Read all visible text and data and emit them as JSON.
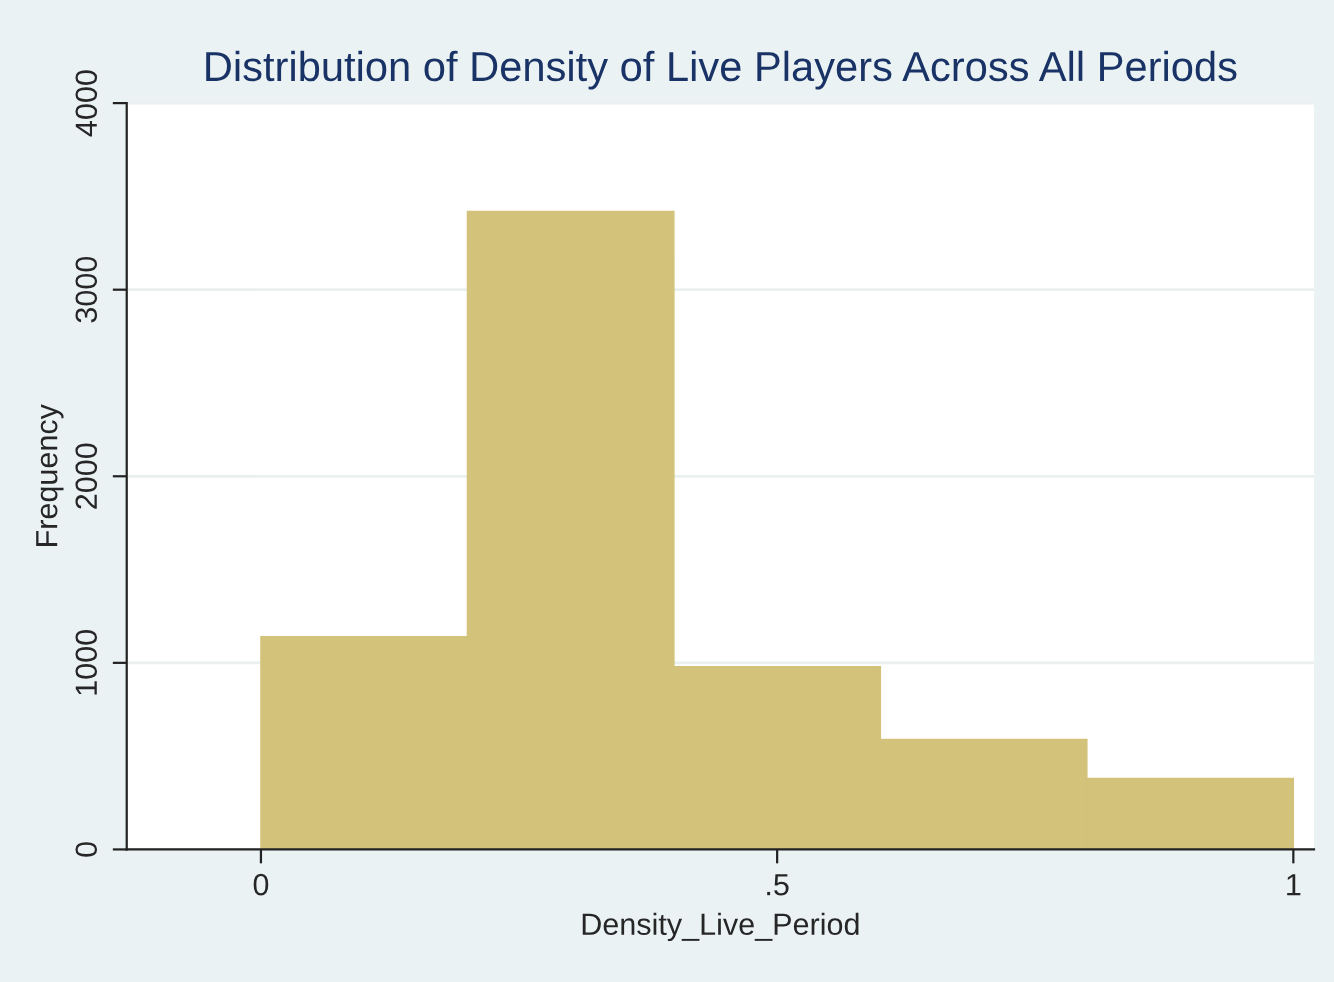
{
  "chart_data": {
    "type": "histogram",
    "title": "Distribution of Density of Live Players Across All Periods",
    "xlabel": "Density_Live_Period",
    "ylabel": "Frequency",
    "bins": [
      0,
      0.2,
      0.4,
      0.6,
      0.8,
      1.0
    ],
    "values": [
      1140,
      3420,
      980,
      590,
      380
    ],
    "color": "#d2c27a",
    "xlim": [
      -0.13,
      1.02
    ],
    "xticks": [
      0,
      {
        "value": 0.5,
        "label": ".5"
      },
      1
    ],
    "ylim": [
      0,
      4000
    ],
    "yticks": [
      0,
      1000,
      2000,
      3000,
      4000
    ],
    "grid": "y"
  }
}
